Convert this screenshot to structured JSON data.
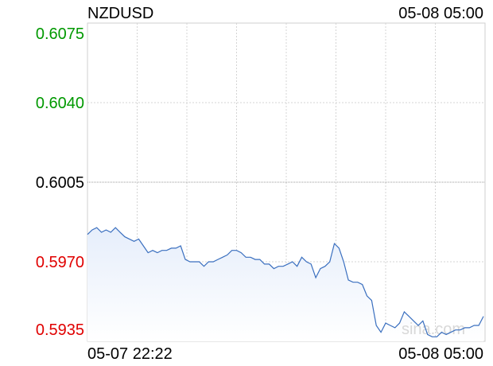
{
  "chart_data": {
    "type": "line",
    "title": "NZDUSD",
    "timestamp": "05-08 05:00",
    "watermark": "sina.com",
    "x_labels": [
      "05-07 22:22",
      "05-08 05:00"
    ],
    "ylim": [
      0.5935,
      0.6075
    ],
    "yticks": [
      0.5935,
      {
        "value": 0.597,
        "label": "0.5970"
      },
      0.6005,
      {
        "value": 0.604,
        "label": "0.6040"
      },
      0.6075
    ],
    "ytick_colors": [
      "#e00000",
      "#e00000",
      "#000000",
      "#009900",
      "#009900"
    ],
    "grid": true,
    "x_grid_divisions": 8,
    "series": [
      {
        "color": "#3a6fbf",
        "values": [
          0.5982,
          0.5984,
          0.5985,
          0.5983,
          0.5984,
          0.5983,
          0.5985,
          0.5983,
          0.5981,
          0.598,
          0.5979,
          0.598,
          0.5977,
          0.5974,
          0.5975,
          0.5974,
          0.5975,
          0.5975,
          0.5976,
          0.5976,
          0.5977,
          0.5971,
          0.597,
          0.597,
          0.597,
          0.5968,
          0.597,
          0.597,
          0.5971,
          0.5972,
          0.5973,
          0.5975,
          0.5975,
          0.5974,
          0.5972,
          0.5972,
          0.5971,
          0.5971,
          0.5969,
          0.5969,
          0.5967,
          0.5968,
          0.5968,
          0.5969,
          0.597,
          0.5968,
          0.5972,
          0.597,
          0.5969,
          0.5963,
          0.5967,
          0.5968,
          0.597,
          0.5978,
          0.5976,
          0.597,
          0.5962,
          0.5961,
          0.5961,
          0.596,
          0.5955,
          0.5953,
          0.5942,
          0.5939,
          0.5943,
          0.5942,
          0.5941,
          0.5943,
          0.5948,
          0.5946,
          0.5944,
          0.5942,
          0.5944,
          0.5938,
          0.5937,
          0.5937,
          0.5939,
          0.5938,
          0.5939,
          0.594,
          0.594,
          0.5941,
          0.5941,
          0.5942,
          0.5942,
          0.5946
        ]
      }
    ]
  }
}
